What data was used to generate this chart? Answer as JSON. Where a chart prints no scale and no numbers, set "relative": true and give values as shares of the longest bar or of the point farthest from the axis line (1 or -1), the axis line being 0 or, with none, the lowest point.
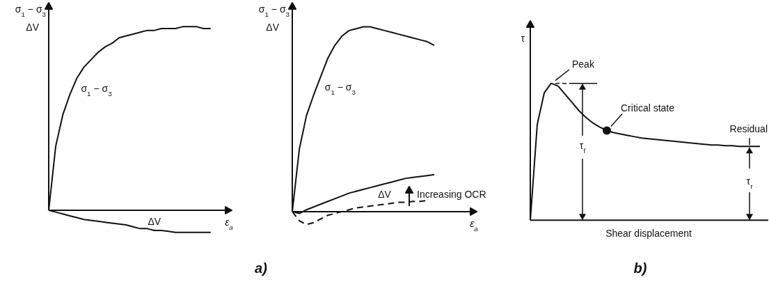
{
  "chart_data": [
    {
      "type": "line",
      "relative": true,
      "ylabel": "σ$_{1}$ − σ$_{3}$\nΔV",
      "xlabel": "ε$_{a}$",
      "categories": [
        null,
        null,
        null,
        null,
        null,
        null,
        null,
        null,
        null,
        null,
        null,
        null,
        null,
        null,
        null,
        null,
        null,
        null,
        null,
        null,
        null,
        null,
        null,
        null,
        null,
        null
      ],
      "series": [
        {
          "name": "σ$_{1}$ − σ$_{3}$",
          "color": "#111111",
          "values": [
            0,
            0.35,
            0.52,
            0.63,
            0.72,
            0.78,
            0.82,
            0.86,
            0.89,
            0.91,
            0.94,
            0.95,
            0.96,
            0.97,
            0.98,
            0.98,
            0.99,
            0.99,
            0.99,
            1,
            1,
            1,
            0.99,
            0.99,
            null,
            null
          ]
        },
        {
          "name": "ΔV",
          "color": "#111111",
          "values": [
            0,
            -0.01,
            -0.02,
            -0.03,
            -0.04,
            -0.05,
            -0.055,
            -0.06,
            -0.065,
            -0.07,
            -0.075,
            -0.08,
            -0.09,
            -0.1,
            -0.1,
            -0.11,
            -0.11,
            -0.115,
            -0.12,
            -0.12,
            -0.12,
            -0.12,
            -0.12,
            -0.12,
            null,
            null
          ]
        }
      ]
    },
    {
      "type": "line",
      "relative": true,
      "ylabel": "σ$_{1}$ − σ$_{3}$\nΔV",
      "xlabel": "ε$_{a}$",
      "categories": [
        null,
        null,
        null,
        null,
        null,
        null,
        null,
        null,
        null,
        null,
        null,
        null,
        null,
        null,
        null,
        null,
        null,
        null,
        null,
        null,
        null,
        null,
        null,
        null,
        null,
        null
      ],
      "series": [
        {
          "name": "σ$_{1}$ − σ$_{3}$",
          "color": "#111111",
          "values": [
            0,
            0.34,
            0.52,
            0.63,
            0.73,
            0.83,
            0.9,
            0.95,
            0.98,
            0.99,
            1,
            1,
            0.99,
            0.98,
            0.97,
            0.96,
            0.95,
            0.94,
            0.93,
            0.92,
            0.9,
            null,
            null,
            null,
            null,
            null
          ]
        },
        {
          "name": "ΔV",
          "color": "#111111",
          "values": [
            0,
            -0.01,
            0.01,
            0.025,
            0.04,
            0.055,
            0.07,
            0.085,
            0.1,
            0.11,
            0.12,
            0.13,
            0.14,
            0.15,
            0.16,
            0.17,
            0.18,
            0.185,
            0.19,
            0.195,
            0.2,
            null,
            null,
            null,
            null,
            null
          ]
        },
        {
          "color": "#111111",
          "line_style": "dashed",
          "values": [
            0,
            -0.05,
            -0.07,
            -0.06,
            -0.04,
            -0.02,
            -0.01,
            0,
            0.01,
            0.02,
            0.025,
            0.03,
            0.035,
            0.04,
            0.045,
            0.05,
            0.05,
            0.055,
            0.055,
            0.06,
            null,
            null,
            null,
            null,
            null,
            null
          ]
        }
      ],
      "annotations": [
        "Increasing OCR",
        "a)"
      ]
    },
    {
      "type": "line",
      "relative": true,
      "ylabel": "τ",
      "xlabel": "Shear displacement",
      "categories": [
        null,
        null,
        null,
        null,
        null,
        null,
        null,
        null,
        null,
        null,
        null,
        null,
        null,
        null,
        null,
        null,
        null,
        null,
        null,
        null,
        null,
        null,
        null,
        null,
        null,
        null,
        null,
        null,
        null,
        null,
        null,
        null,
        null,
        null,
        null
      ],
      "series": [
        {
          "color": "#111111",
          "values": [
            0,
            0.7,
            0.93,
            1,
            0.98,
            0.92,
            0.86,
            0.8,
            0.75,
            0.71,
            0.68,
            0.655,
            0.64,
            0.63,
            0.62,
            0.61,
            0.6,
            0.595,
            0.59,
            0.585,
            0.58,
            0.575,
            0.57,
            0.565,
            0.56,
            0.555,
            0.55,
            0.55,
            0.545,
            0.545,
            0.54,
            0.54,
            0.54,
            0.54,
            null
          ]
        }
      ],
      "annotations": [
        "Peak",
        "τ$_{f}$",
        "Residual",
        "τ$_{r}$",
        "b)",
        "Critical state"
      ]
    }
  ]
}
